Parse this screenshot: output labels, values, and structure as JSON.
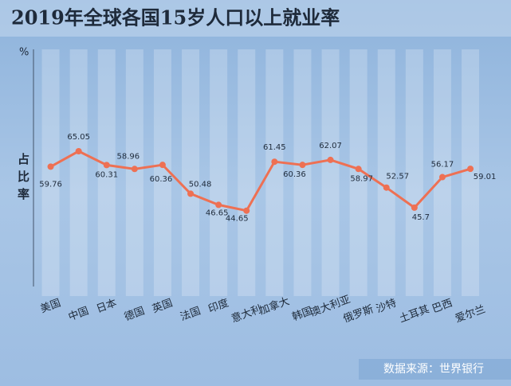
{
  "chart_data": {
    "type": "line",
    "title": "2019年全球各国15岁人口以上就业率",
    "y_label": "占比率",
    "y_unit": "%",
    "source": "数据来源：世界银行",
    "categories": [
      "美国",
      "中国",
      "日本",
      "德国",
      "英国",
      "法国",
      "印度",
      "意大利",
      "加拿大",
      "韩国",
      "澳大利亚",
      "俄罗斯",
      "沙特",
      "土耳其",
      "巴西",
      "爱尔兰"
    ],
    "values": [
      59.76,
      65.05,
      60.31,
      58.96,
      60.36,
      50.48,
      46.65,
      44.65,
      61.45,
      60.36,
      62.07,
      58.97,
      52.57,
      45.7,
      56.17,
      59.01
    ],
    "color": "#ee7053",
    "ylim": [
      20,
      100
    ]
  }
}
